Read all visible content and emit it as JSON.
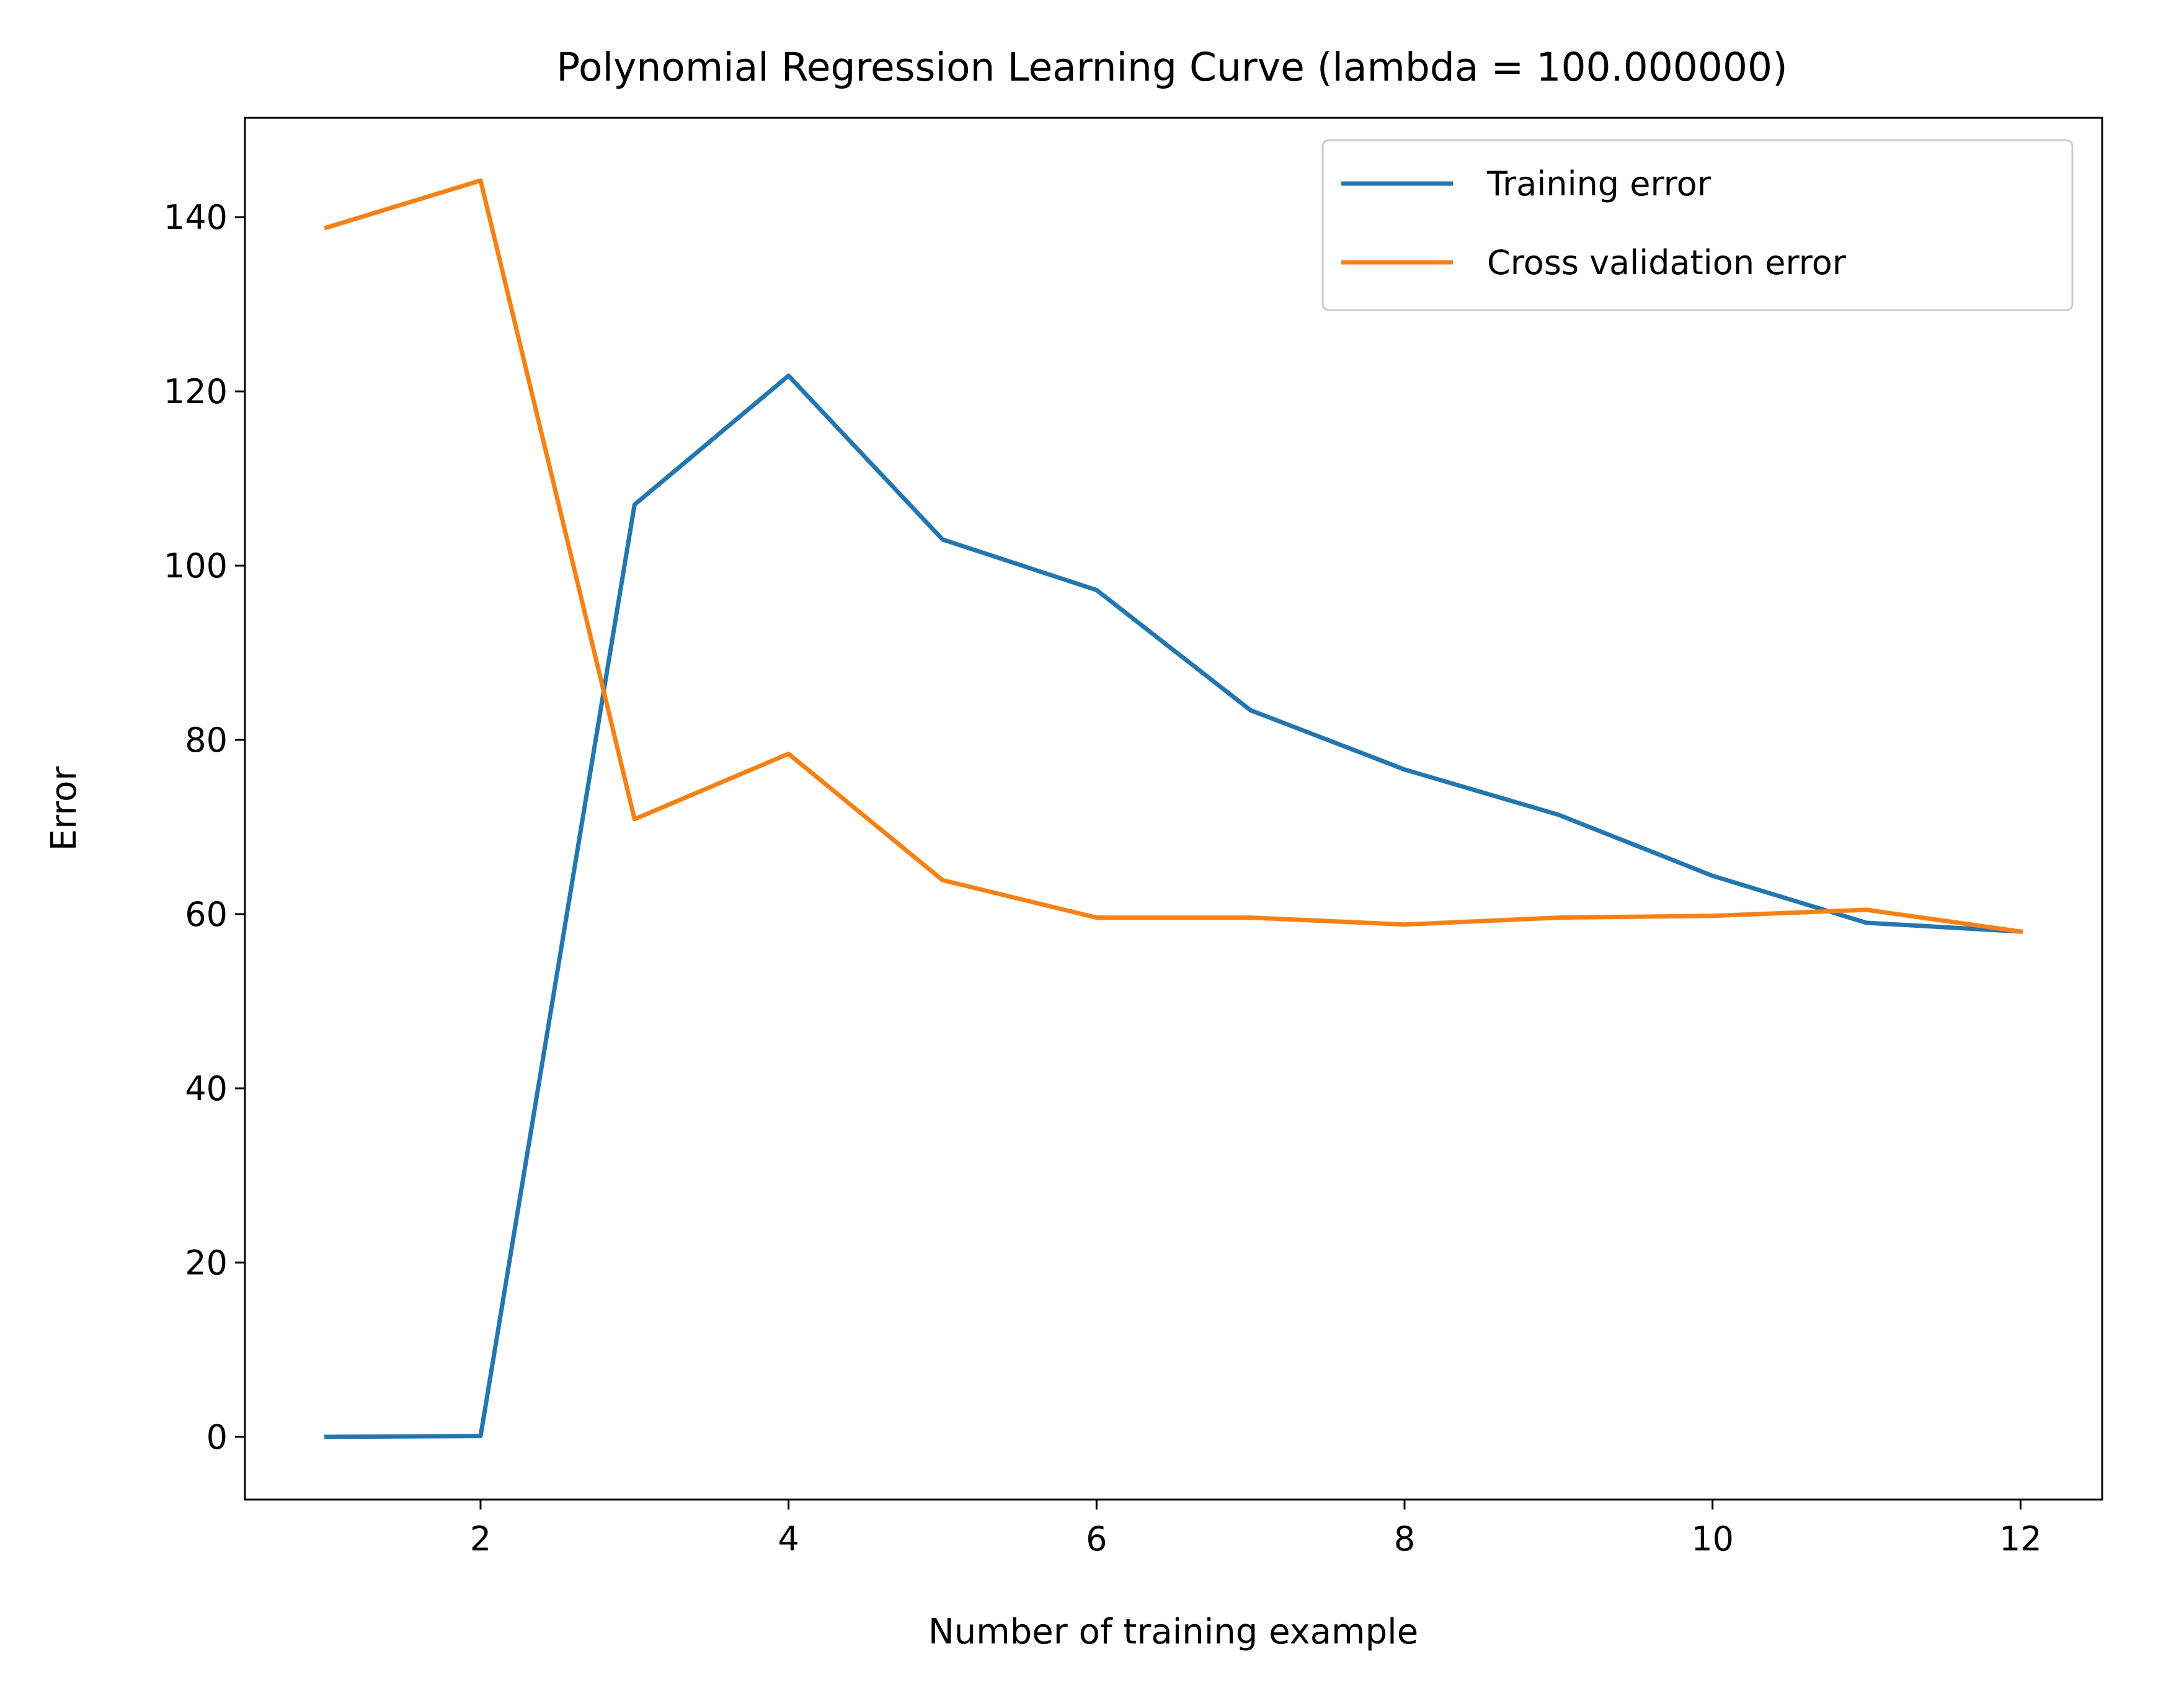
{
  "chart_data": {
    "type": "line",
    "title": "Polynomial Regression Learning Curve (lambda = 100.000000)",
    "xlabel": "Number of training example",
    "ylabel": "Error",
    "xlim": [
      0.47,
      12.53
    ],
    "ylim": [
      -7.2,
      151.4
    ],
    "xticks": [
      2,
      4,
      6,
      8,
      10,
      12
    ],
    "yticks": [
      0,
      20,
      40,
      60,
      80,
      100,
      120,
      140
    ],
    "grid": false,
    "legend_position": "top-right",
    "x": [
      1,
      2,
      3,
      4,
      5,
      6,
      7,
      8,
      9,
      10,
      11,
      12
    ],
    "series": [
      {
        "name": "Training error",
        "color": "#1f77b4",
        "values": [
          0.0,
          0.1,
          107.0,
          121.8,
          103.0,
          97.2,
          83.4,
          76.6,
          71.4,
          64.4,
          59.0,
          58.0
        ]
      },
      {
        "name": "Cross validation error",
        "color": "#ff7f0e",
        "values": [
          138.8,
          144.2,
          70.9,
          78.4,
          63.9,
          59.6,
          59.6,
          58.8,
          59.6,
          59.8,
          60.5,
          58.0
        ]
      }
    ]
  }
}
